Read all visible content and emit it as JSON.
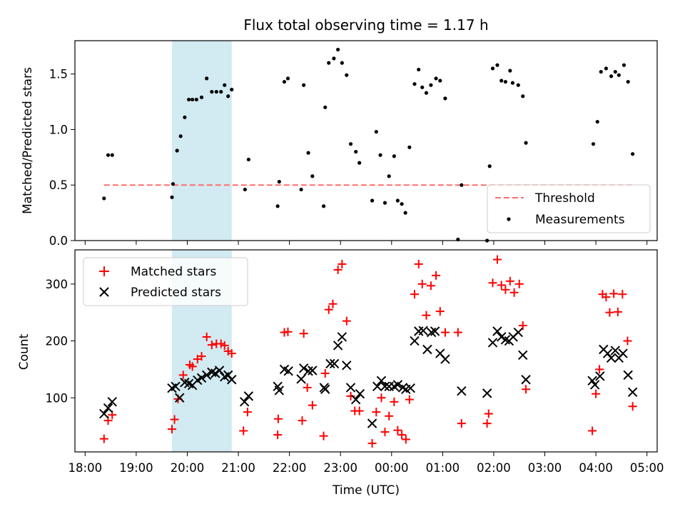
{
  "figure": {
    "title": "Flux total observing time = 1.17 h",
    "xlabel": "Time (UTC)",
    "x_ticks": [
      "18:00",
      "19:00",
      "20:00",
      "21:00",
      "22:00",
      "23:00",
      "00:00",
      "01:00",
      "02:00",
      "03:00",
      "04:00",
      "05:00"
    ]
  },
  "colors": {
    "shade": "#add8e6",
    "threshold": "#ff6e6e",
    "measurements": "#000000",
    "matched": "#ff0000",
    "predicted": "#000000"
  },
  "chart_data": [
    {
      "type": "scatter",
      "title": "Flux total observing time = 1.17 h",
      "ylabel": "Matched/Predicted stars",
      "xlim": [
        17.8,
        29.2
      ],
      "ylim": [
        0,
        1.8
      ],
      "yticks": [
        "0.0",
        "0.5",
        "1.0",
        "1.5"
      ],
      "legend": {
        "placement": "lower-right",
        "threshold_label": "Threshold",
        "measurements_label": "Measurements"
      },
      "shaded_interval": [
        19.7,
        20.87
      ],
      "threshold": {
        "y": 0.5,
        "x_range": [
          18.37,
          28.72
        ]
      },
      "measurements": [
        [
          18.37,
          0.38
        ],
        [
          18.45,
          0.77
        ],
        [
          18.53,
          0.77
        ],
        [
          19.7,
          0.39
        ],
        [
          19.72,
          0.51
        ],
        [
          19.8,
          0.81
        ],
        [
          19.87,
          0.94
        ],
        [
          19.95,
          1.11
        ],
        [
          20.03,
          1.27
        ],
        [
          20.1,
          1.27
        ],
        [
          20.18,
          1.27
        ],
        [
          20.28,
          1.29
        ],
        [
          20.38,
          1.46
        ],
        [
          20.48,
          1.34
        ],
        [
          20.57,
          1.34
        ],
        [
          20.66,
          1.34
        ],
        [
          20.73,
          1.4
        ],
        [
          20.8,
          1.3
        ],
        [
          20.87,
          1.36
        ],
        [
          21.13,
          0.46
        ],
        [
          21.2,
          0.73
        ],
        [
          21.77,
          0.31
        ],
        [
          21.8,
          0.53
        ],
        [
          21.9,
          1.43
        ],
        [
          21.97,
          1.46
        ],
        [
          22.23,
          0.46
        ],
        [
          22.28,
          1.4
        ],
        [
          22.37,
          0.79
        ],
        [
          22.45,
          0.58
        ],
        [
          22.67,
          0.31
        ],
        [
          22.7,
          1.2
        ],
        [
          22.77,
          1.6
        ],
        [
          22.87,
          1.64
        ],
        [
          22.95,
          1.72
        ],
        [
          23.03,
          1.6
        ],
        [
          23.12,
          1.49
        ],
        [
          23.2,
          0.87
        ],
        [
          23.3,
          0.8
        ],
        [
          23.37,
          0.7
        ],
        [
          23.62,
          0.36
        ],
        [
          23.7,
          0.98
        ],
        [
          23.78,
          0.77
        ],
        [
          23.87,
          0.34
        ],
        [
          23.95,
          0.58
        ],
        [
          24.05,
          0.76
        ],
        [
          24.12,
          0.36
        ],
        [
          24.2,
          0.33
        ],
        [
          24.27,
          0.25
        ],
        [
          24.35,
          0.84
        ],
        [
          24.45,
          1.41
        ],
        [
          24.53,
          1.54
        ],
        [
          24.6,
          1.38
        ],
        [
          24.68,
          1.33
        ],
        [
          24.77,
          1.4
        ],
        [
          24.87,
          1.46
        ],
        [
          24.95,
          1.44
        ],
        [
          25.05,
          1.28
        ],
        [
          25.37,
          0.5
        ],
        [
          25.3,
          0.01
        ],
        [
          25.87,
          0.0
        ],
        [
          25.92,
          0.67
        ],
        [
          25.98,
          1.55
        ],
        [
          26.07,
          1.58
        ],
        [
          26.15,
          1.44
        ],
        [
          26.23,
          1.43
        ],
        [
          26.32,
          1.53
        ],
        [
          26.37,
          1.42
        ],
        [
          26.48,
          1.4
        ],
        [
          26.57,
          1.3
        ],
        [
          26.63,
          0.88
        ],
        [
          27.95,
          0.87
        ],
        [
          28.03,
          1.07
        ],
        [
          28.1,
          1.52
        ],
        [
          28.2,
          1.55
        ],
        [
          28.3,
          1.48
        ],
        [
          28.38,
          1.52
        ],
        [
          28.45,
          1.49
        ],
        [
          28.55,
          1.58
        ],
        [
          28.63,
          1.43
        ],
        [
          28.72,
          0.78
        ]
      ]
    },
    {
      "type": "scatter",
      "ylabel": "Count",
      "xlabel": "Time (UTC)",
      "xlim": [
        17.8,
        29.2
      ],
      "ylim": [
        5,
        360
      ],
      "yticks": [
        "100",
        "200",
        "300"
      ],
      "legend": {
        "placement": "upper-left",
        "matched_label": "Matched stars",
        "predicted_label": "Predicted stars"
      },
      "shaded_interval": [
        19.7,
        20.87
      ],
      "matched": [
        [
          18.37,
          28
        ],
        [
          18.45,
          60
        ],
        [
          18.53,
          70
        ],
        [
          19.7,
          45
        ],
        [
          19.75,
          62
        ],
        [
          19.82,
          98
        ],
        [
          19.92,
          140
        ],
        [
          20.05,
          158
        ],
        [
          20.1,
          155
        ],
        [
          20.2,
          168
        ],
        [
          20.28,
          173
        ],
        [
          20.38,
          207
        ],
        [
          20.48,
          193
        ],
        [
          20.57,
          195
        ],
        [
          20.66,
          195
        ],
        [
          20.73,
          192
        ],
        [
          20.8,
          182
        ],
        [
          20.87,
          178
        ],
        [
          21.1,
          42
        ],
        [
          21.18,
          75
        ],
        [
          21.77,
          35
        ],
        [
          21.78,
          63
        ],
        [
          21.9,
          215
        ],
        [
          21.97,
          216
        ],
        [
          22.25,
          60
        ],
        [
          22.28,
          213
        ],
        [
          22.35,
          118
        ],
        [
          22.45,
          87
        ],
        [
          22.67,
          33
        ],
        [
          22.7,
          143
        ],
        [
          22.77,
          255
        ],
        [
          22.85,
          265
        ],
        [
          22.95,
          325
        ],
        [
          23.03,
          335
        ],
        [
          23.12,
          235
        ],
        [
          23.2,
          103
        ],
        [
          23.28,
          77
        ],
        [
          23.37,
          77
        ],
        [
          23.62,
          20
        ],
        [
          23.7,
          75
        ],
        [
          23.8,
          100
        ],
        [
          23.87,
          40
        ],
        [
          23.95,
          68
        ],
        [
          24.05,
          93
        ],
        [
          24.12,
          43
        ],
        [
          24.2,
          35
        ],
        [
          24.28,
          27
        ],
        [
          24.35,
          97
        ],
        [
          24.45,
          282
        ],
        [
          24.53,
          335
        ],
        [
          24.6,
          300
        ],
        [
          24.68,
          245
        ],
        [
          24.77,
          297
        ],
        [
          24.87,
          315
        ],
        [
          24.95,
          252
        ],
        [
          25.05,
          215
        ],
        [
          25.3,
          215
        ],
        [
          25.37,
          55
        ],
        [
          25.87,
          55
        ],
        [
          25.9,
          72
        ],
        [
          25.98,
          302
        ],
        [
          26.07,
          343
        ],
        [
          26.15,
          298
        ],
        [
          26.23,
          290
        ],
        [
          26.32,
          305
        ],
        [
          26.4,
          285
        ],
        [
          26.5,
          300
        ],
        [
          26.57,
          227
        ],
        [
          26.63,
          115
        ],
        [
          27.93,
          42
        ],
        [
          28.0,
          107
        ],
        [
          28.07,
          150
        ],
        [
          28.13,
          282
        ],
        [
          28.2,
          277
        ],
        [
          28.27,
          250
        ],
        [
          28.35,
          283
        ],
        [
          28.43,
          251
        ],
        [
          28.52,
          282
        ],
        [
          28.62,
          200
        ],
        [
          28.72,
          85
        ]
      ],
      "predicted": [
        [
          18.37,
          72
        ],
        [
          18.45,
          82
        ],
        [
          18.53,
          93
        ],
        [
          19.7,
          117
        ],
        [
          19.77,
          120
        ],
        [
          19.85,
          100
        ],
        [
          19.95,
          127
        ],
        [
          20.03,
          125
        ],
        [
          20.1,
          122
        ],
        [
          20.2,
          131
        ],
        [
          20.28,
          135
        ],
        [
          20.38,
          140
        ],
        [
          20.48,
          145
        ],
        [
          20.55,
          143
        ],
        [
          20.63,
          148
        ],
        [
          20.73,
          137
        ],
        [
          20.8,
          140
        ],
        [
          20.87,
          132
        ],
        [
          21.12,
          93
        ],
        [
          21.2,
          103
        ],
        [
          21.77,
          120
        ],
        [
          21.8,
          113
        ],
        [
          21.9,
          150
        ],
        [
          21.98,
          147
        ],
        [
          22.23,
          133
        ],
        [
          22.28,
          152
        ],
        [
          22.37,
          147
        ],
        [
          22.45,
          148
        ],
        [
          22.68,
          118
        ],
        [
          22.7,
          115
        ],
        [
          22.8,
          160
        ],
        [
          22.88,
          160
        ],
        [
          22.95,
          192
        ],
        [
          23.03,
          207
        ],
        [
          23.12,
          157
        ],
        [
          23.2,
          118
        ],
        [
          23.3,
          97
        ],
        [
          23.38,
          107
        ],
        [
          23.62,
          55
        ],
        [
          23.72,
          120
        ],
        [
          23.8,
          130
        ],
        [
          23.87,
          120
        ],
        [
          23.95,
          120
        ],
        [
          24.05,
          120
        ],
        [
          24.12,
          123
        ],
        [
          24.22,
          118
        ],
        [
          24.28,
          115
        ],
        [
          24.37,
          117
        ],
        [
          24.45,
          200
        ],
        [
          24.53,
          217
        ],
        [
          24.62,
          218
        ],
        [
          24.7,
          185
        ],
        [
          24.78,
          215
        ],
        [
          24.85,
          217
        ],
        [
          24.95,
          178
        ],
        [
          25.05,
          168
        ],
        [
          25.37,
          112
        ],
        [
          25.87,
          108
        ],
        [
          25.98,
          197
        ],
        [
          26.07,
          217
        ],
        [
          26.15,
          207
        ],
        [
          26.23,
          202
        ],
        [
          26.3,
          200
        ],
        [
          26.38,
          207
        ],
        [
          26.48,
          215
        ],
        [
          26.57,
          175
        ],
        [
          26.63,
          132
        ],
        [
          27.93,
          130
        ],
        [
          27.98,
          123
        ],
        [
          28.08,
          138
        ],
        [
          28.15,
          185
        ],
        [
          28.23,
          178
        ],
        [
          28.3,
          170
        ],
        [
          28.38,
          183
        ],
        [
          28.45,
          170
        ],
        [
          28.53,
          178
        ],
        [
          28.63,
          140
        ],
        [
          28.72,
          110
        ]
      ]
    }
  ]
}
